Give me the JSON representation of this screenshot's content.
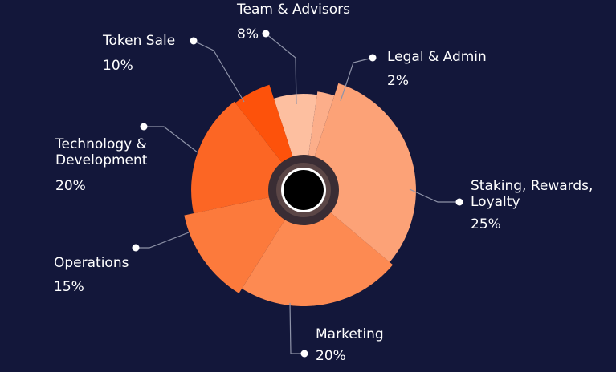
{
  "chart_data": {
    "type": "pie",
    "variant": "polar-area (exploded radii)",
    "title": "",
    "slices": [
      {
        "label": "Team & Advisors",
        "percent": "8%",
        "value": 8,
        "color": "#fdbfa0"
      },
      {
        "label": "Legal & Admin",
        "percent": "2%",
        "value": 2,
        "color": "#fcae8a"
      },
      {
        "label": "Staking, Rewards, Loyalty",
        "percent": "25%",
        "value": 25,
        "color": "#fca277"
      },
      {
        "label": "Marketing",
        "percent": "20%",
        "value": 20,
        "color": "#fd8a52"
      },
      {
        "label": "Operations",
        "percent": "15%",
        "value": 15,
        "color": "#fc7a3c"
      },
      {
        "label": "Technology & Development",
        "percent": "20%",
        "value": 20,
        "color": "#fc6624"
      },
      {
        "label": "Token Sale",
        "percent": "10%",
        "value": 10,
        "color": "#fd520b"
      }
    ],
    "center_color": "#000000",
    "background_color": "#13173a",
    "leader_line_color": "#8e93a8"
  }
}
